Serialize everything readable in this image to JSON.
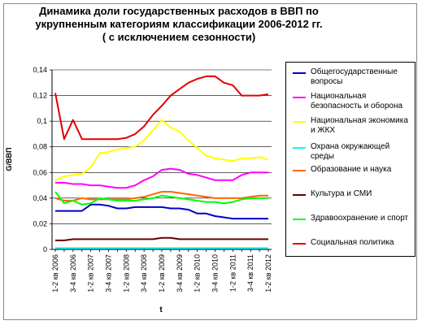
{
  "chart_data": {
    "type": "line",
    "title_lines": [
      "Динамика доли государственных расходов в ВВП по",
      "укрупненным категориям классификации 2006-2012 гг.",
      "( с исключением сезонности)"
    ],
    "ylabel": "G/ВВП",
    "xlabel": "t",
    "ylim": [
      0,
      0.14
    ],
    "yticks": [
      "0",
      "0,02",
      "0,04",
      "0,06",
      "0,08",
      "0,1",
      "0,12",
      "0,14"
    ],
    "x_tick_labels": [
      "1-2 кв 2006",
      "3-4 кв 2006",
      "1-2 кв 2007",
      "3-4 кв 2007",
      "1-2 кв 2008",
      "3-4 кв 2008",
      "1-2 кв 2009",
      "3-4 кв 2009",
      "1-2 кв 2010",
      "3-4 кв 2010",
      "1-2 кв 2011",
      "3-4 кв 2011",
      "1-2 кв 2012"
    ],
    "num_points": 25,
    "grid": "horizontal",
    "legend_position": "right",
    "series": [
      {
        "name": "Общегосударственные вопросы",
        "color": "#0000cc",
        "values": [
          0.03,
          0.03,
          0.03,
          0.03,
          0.035,
          0.035,
          0.034,
          0.032,
          0.032,
          0.033,
          0.033,
          0.033,
          0.033,
          0.032,
          0.032,
          0.031,
          0.028,
          0.028,
          0.026,
          0.025,
          0.024,
          0.024,
          0.024,
          0.024,
          0.024
        ]
      },
      {
        "name": "Национальная безопасность и оборона",
        "color": "#ff00ff",
        "values": [
          0.052,
          0.052,
          0.051,
          0.051,
          0.05,
          0.05,
          0.049,
          0.048,
          0.048,
          0.05,
          0.054,
          0.057,
          0.062,
          0.063,
          0.062,
          0.059,
          0.058,
          0.056,
          0.054,
          0.054,
          0.054,
          0.058,
          0.06,
          0.06,
          0.06
        ]
      },
      {
        "name": "Национальная экономика и ЖКХ",
        "color": "#ffff00",
        "values": [
          0.054,
          0.057,
          0.058,
          0.059,
          0.064,
          0.075,
          0.076,
          0.078,
          0.079,
          0.08,
          0.085,
          0.093,
          0.101,
          0.095,
          0.092,
          0.085,
          0.079,
          0.073,
          0.071,
          0.07,
          0.069,
          0.071,
          0.071,
          0.072,
          0.07
        ]
      },
      {
        "name": "Охрана окружающей среды",
        "color": "#00ffff",
        "values": [
          0.001,
          0.001,
          0.001,
          0.001,
          0.001,
          0.001,
          0.001,
          0.001,
          0.001,
          0.001,
          0.001,
          0.001,
          0.001,
          0.001,
          0.001,
          0.001,
          0.001,
          0.001,
          0.001,
          0.001,
          0.001,
          0.001,
          0.001,
          0.001,
          0.001
        ]
      },
      {
        "name": "Образование и наука",
        "color": "#ff6600",
        "values": [
          0.04,
          0.038,
          0.038,
          0.04,
          0.039,
          0.039,
          0.039,
          0.039,
          0.039,
          0.04,
          0.041,
          0.043,
          0.045,
          0.045,
          0.044,
          0.043,
          0.042,
          0.041,
          0.04,
          0.04,
          0.04,
          0.04,
          0.041,
          0.042,
          0.042
        ]
      },
      {
        "name": "Культура и СМИ",
        "color": "#660000",
        "values": [
          0.007,
          0.007,
          0.008,
          0.008,
          0.008,
          0.008,
          0.008,
          0.008,
          0.008,
          0.008,
          0.008,
          0.008,
          0.009,
          0.009,
          0.008,
          0.008,
          0.008,
          0.008,
          0.008,
          0.008,
          0.008,
          0.008,
          0.008,
          0.008,
          0.008
        ]
      },
      {
        "name": "Здравоохранение и спорт",
        "color": "#00ff00",
        "values": [
          0.045,
          0.036,
          0.038,
          0.035,
          0.036,
          0.04,
          0.039,
          0.038,
          0.038,
          0.038,
          0.039,
          0.04,
          0.042,
          0.041,
          0.04,
          0.039,
          0.038,
          0.037,
          0.037,
          0.036,
          0.037,
          0.039,
          0.04,
          0.04,
          0.04
        ]
      },
      {
        "name": "Социальная политика",
        "color": "#e00000",
        "values": [
          0.122,
          0.086,
          0.101,
          0.086,
          0.086,
          0.086,
          0.086,
          0.086,
          0.087,
          0.09,
          0.096,
          0.105,
          0.112,
          0.12,
          0.125,
          0.13,
          0.133,
          0.135,
          0.135,
          0.13,
          0.128,
          0.12,
          0.12,
          0.12,
          0.121
        ]
      }
    ]
  }
}
